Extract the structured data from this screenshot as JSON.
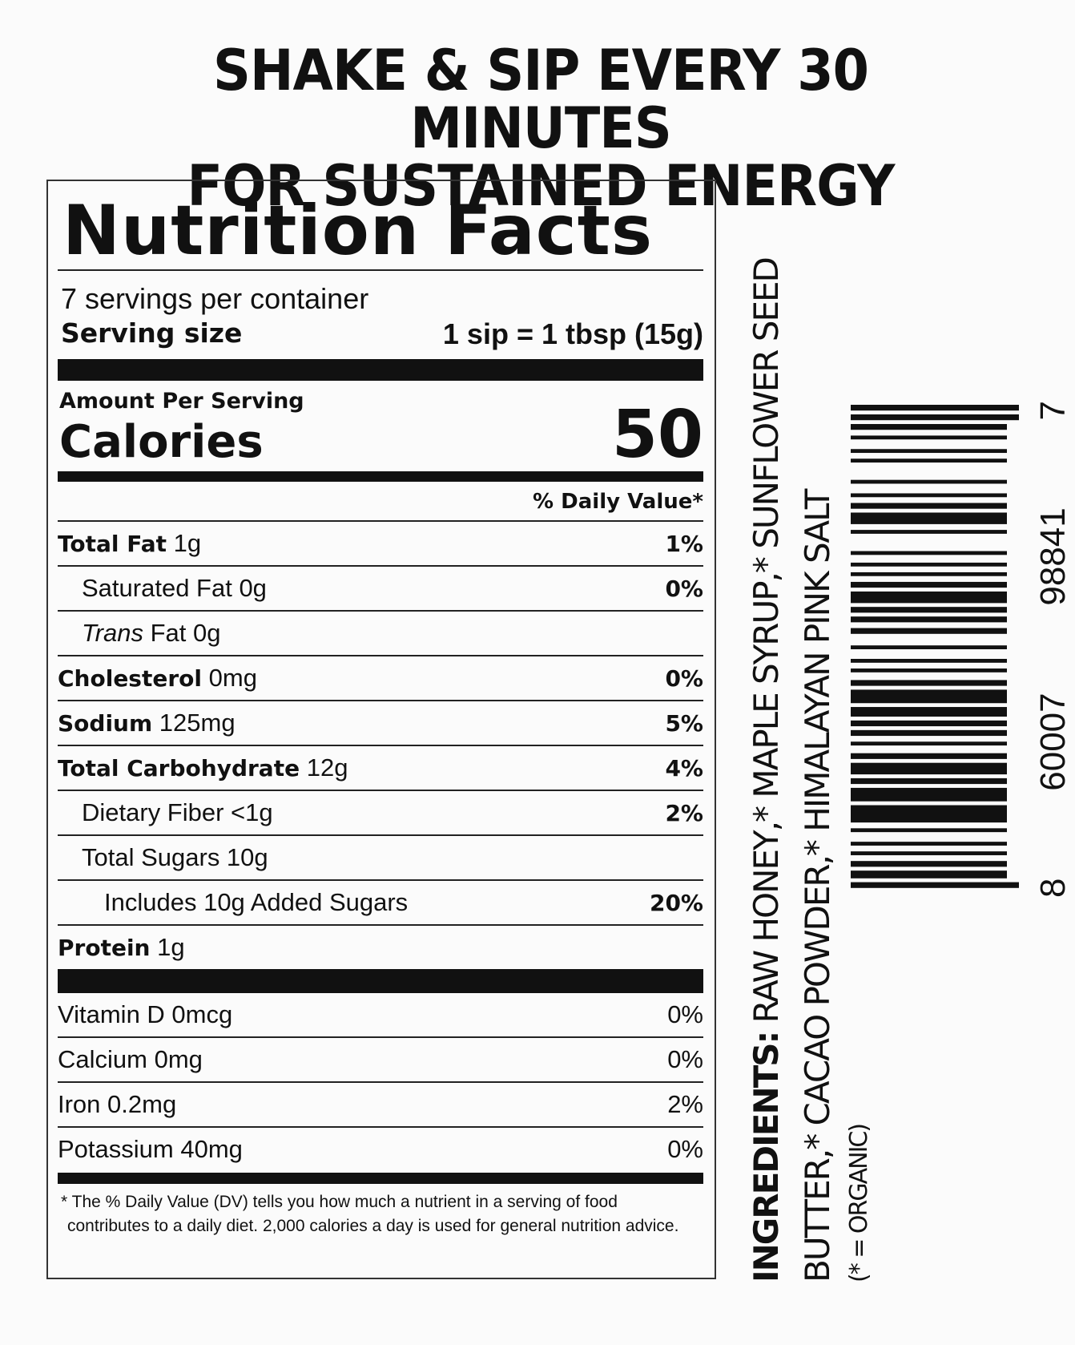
{
  "headline": [
    "SHAKE & SIP EVERY 30 MINUTES",
    "FOR SUSTAINED ENERGY"
  ],
  "nutrition": {
    "title": "Nutrition Facts",
    "servings": "7 servings per container",
    "serving_size_label": "Serving size",
    "serving_size_value": "1 sip = 1 tbsp (15g)",
    "amount_per_serving": "Amount Per Serving",
    "calories_label": "Calories",
    "calories_value": "50",
    "dv_header": "% Daily Value*",
    "rows": [
      {
        "name": "Total Fat",
        "amount": "1g",
        "dv": "1%",
        "bold": true,
        "indent": 0
      },
      {
        "name": "Saturated Fat 0g",
        "amount": "",
        "dv": "0%",
        "bold": false,
        "indent": 1
      },
      {
        "name": "Trans",
        "amount": "Fat 0g",
        "dv": "",
        "bold": false,
        "indent": 1,
        "italic": true
      },
      {
        "name": "Cholesterol",
        "amount": "0mg",
        "dv": "0%",
        "bold": true,
        "indent": 0
      },
      {
        "name": "Sodium",
        "amount": "125mg",
        "dv": "5%",
        "bold": true,
        "indent": 0
      },
      {
        "name": "Total Carbohydrate",
        "amount": "12g",
        "dv": "4%",
        "bold": true,
        "indent": 0
      },
      {
        "name": "Dietary Fiber <1g",
        "amount": "",
        "dv": "2%",
        "bold": false,
        "indent": 1
      },
      {
        "name": "Total Sugars 10g",
        "amount": "",
        "dv": "",
        "bold": false,
        "indent": 1
      },
      {
        "name": "Includes 10g Added Sugars",
        "amount": "",
        "dv": "20%",
        "bold": false,
        "indent": 2
      },
      {
        "name": "Protein",
        "amount": "1g",
        "dv": "",
        "bold": true,
        "indent": 0
      }
    ],
    "vitamins": [
      {
        "name": "Vitamin D 0mcg",
        "dv": "0%"
      },
      {
        "name": "Calcium 0mg",
        "dv": "0%"
      },
      {
        "name": "Iron 0.2mg",
        "dv": "2%"
      },
      {
        "name": "Potassium 40mg",
        "dv": "0%"
      }
    ],
    "footnote": "* The % Daily Value (DV) tells you how much a nutrient in a serving of food contributes to a daily diet. 2,000 calories a day is used for general nutrition advice."
  },
  "ingredients": {
    "label": "INGREDIENTS:",
    "line1": " RAW HONEY,* MAPLE SYRUP,* SUNFLOWER SEED",
    "line2": "BUTTER,* CACAO POWDER,* HIMALAYAN PINK SALT",
    "note": "(* = ORGANIC)"
  },
  "barcode": {
    "digits": [
      "8",
      "60007",
      "98841",
      "7"
    ]
  }
}
